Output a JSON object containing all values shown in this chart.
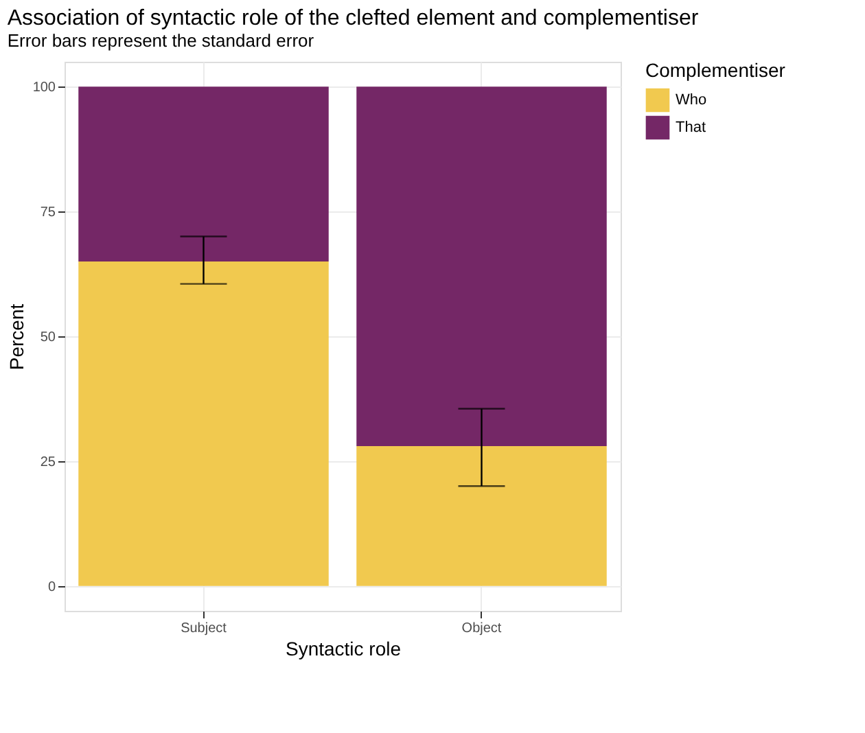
{
  "chart_data": {
    "type": "bar",
    "title": "Association of syntactic role of the clefted element and complementiser",
    "subtitle": "Error bars represent the standard error",
    "xlabel": "Syntactic role",
    "ylabel": "Percent",
    "legend_title": "Complementiser",
    "categories": [
      "Subject",
      "Object"
    ],
    "series": [
      {
        "name": "Who",
        "color": "#f1c94f",
        "values": [
          65,
          28
        ],
        "errors": [
          [
            60.5,
            70
          ],
          [
            20,
            35.5
          ]
        ]
      },
      {
        "name": "That",
        "color": "#742766",
        "values": [
          35,
          72
        ]
      }
    ],
    "stacked": true,
    "ylim": [
      -5,
      105
    ],
    "yticks": [
      0,
      25,
      50,
      75,
      100
    ],
    "grid": true,
    "legend": "right"
  }
}
